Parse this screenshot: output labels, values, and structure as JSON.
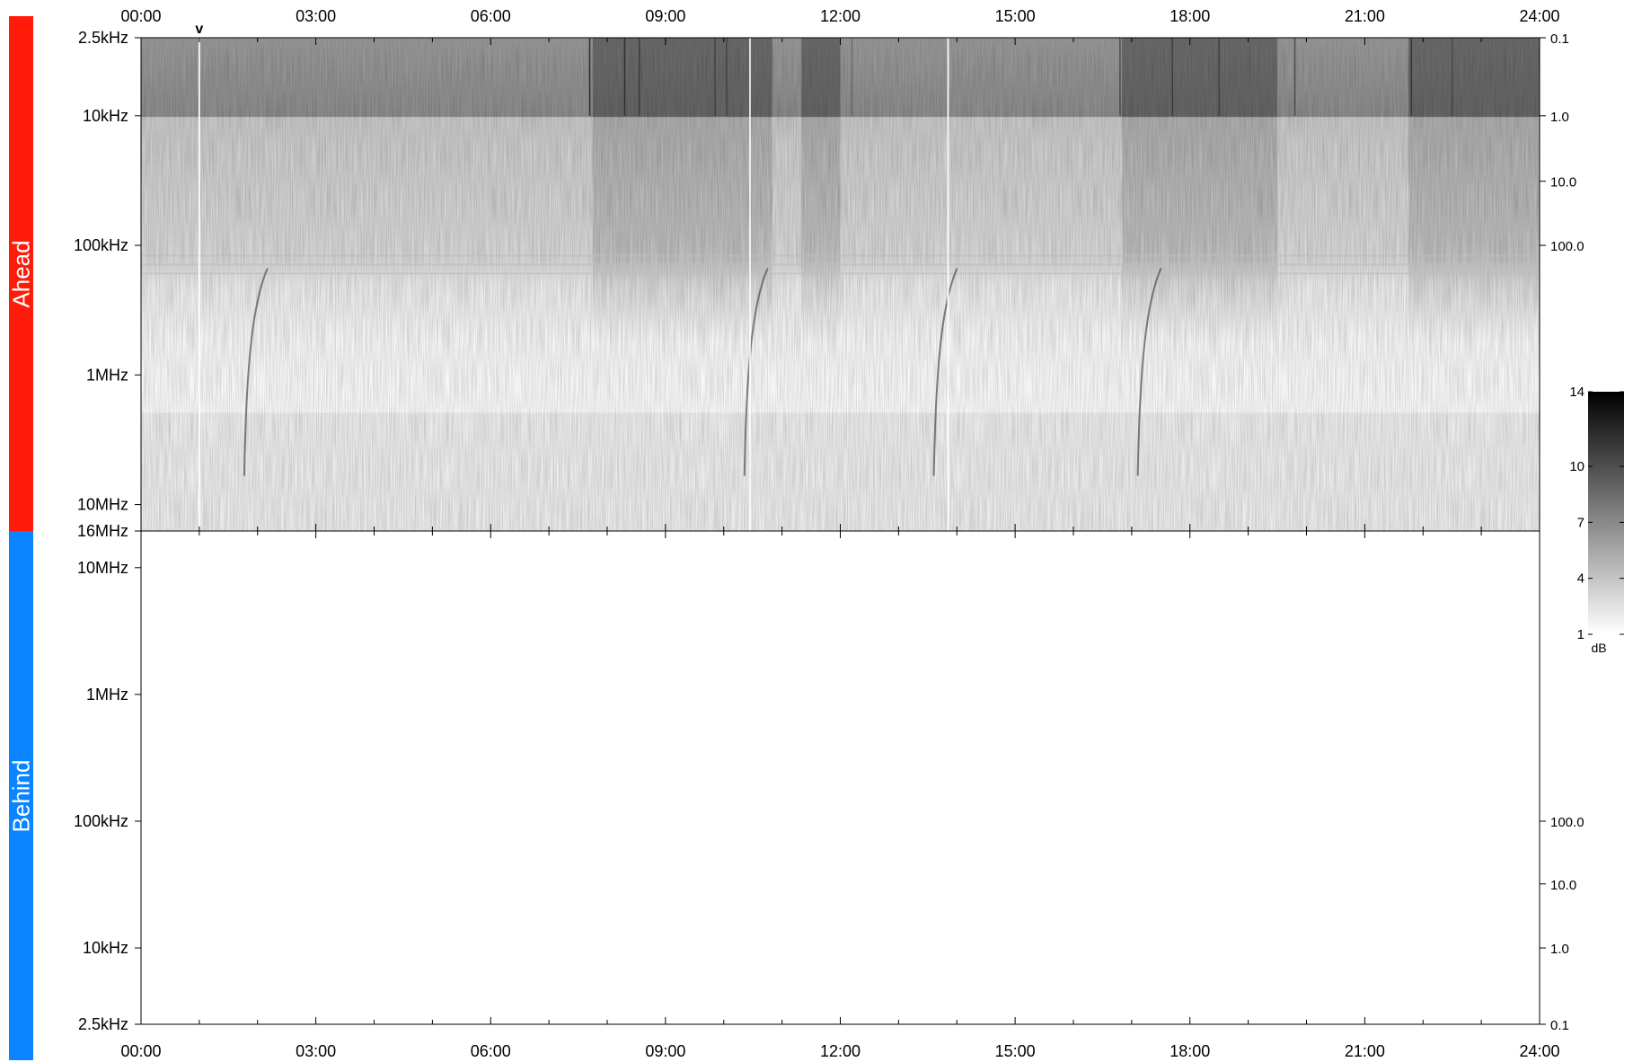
{
  "panels": {
    "ahead": {
      "label": "Ahead",
      "color": "#ff1a0a"
    },
    "behind": {
      "label": "Behind",
      "color": "#0a84ff"
    }
  },
  "colorbar": {
    "unit": "dB",
    "ticks": [
      "14",
      "10",
      "7",
      "4",
      "1"
    ],
    "values": [
      14,
      10,
      7,
      4,
      1
    ],
    "range": [
      1,
      14
    ]
  },
  "chart_data": {
    "type": "heatmap",
    "subtype": "radio spectrogram (frequency vs time, two panels)",
    "x_ticks": [
      "00:00",
      "03:00",
      "06:00",
      "09:00",
      "12:00",
      "15:00",
      "18:00",
      "21:00",
      "24:00"
    ],
    "x_range": [
      "00:00",
      "24:00"
    ],
    "top_panel": {
      "name": "Ahead",
      "y_scale": "log",
      "y_range_hz": [
        2500,
        16000000
      ],
      "y_inverted": true,
      "y_ticks": [
        {
          "label": "2.5kHz",
          "hz": 2500
        },
        {
          "label": "10kHz",
          "hz": 10000
        },
        {
          "label": "100kHz",
          "hz": 100000
        },
        {
          "label": "1MHz",
          "hz": 1000000
        },
        {
          "label": "10MHz",
          "hz": 10000000
        },
        {
          "label": "16MHz",
          "hz": 16000000
        }
      ],
      "right_ticks": [
        {
          "label": "0.1",
          "hz": 2500
        },
        {
          "label": "1.0",
          "hz": 10000
        },
        {
          "label": "10.0",
          "hz": 32000
        },
        {
          "label": "100.0",
          "hz": 100000
        }
      ],
      "marker": {
        "symbol": "v",
        "time": "01:00"
      },
      "type_iii_bursts": [
        {
          "time": "01:50"
        },
        {
          "time": "10:25"
        },
        {
          "time": "13:40"
        },
        {
          "time": "17:10"
        }
      ],
      "enhanced_intervals": [
        {
          "start": "07:45",
          "end": "10:50"
        },
        {
          "start": "11:20",
          "end": "12:00"
        },
        {
          "start": "16:50",
          "end": "19:30"
        },
        {
          "start": "21:45",
          "end": "24:00"
        }
      ]
    },
    "bottom_panel": {
      "name": "Behind",
      "y_scale": "log",
      "y_range_hz": [
        2500,
        16000000
      ],
      "y_ticks": [
        {
          "label": "10MHz",
          "hz": 10000000
        },
        {
          "label": "1MHz",
          "hz": 1000000
        },
        {
          "label": "100kHz",
          "hz": 100000
        },
        {
          "label": "10kHz",
          "hz": 10000
        },
        {
          "label": "2.5kHz",
          "hz": 2500
        }
      ],
      "right_ticks": [
        {
          "label": "100.0",
          "hz": 100000
        },
        {
          "label": "10.0",
          "hz": 32000
        },
        {
          "label": "1.0",
          "hz": 10000
        },
        {
          "label": "0.1",
          "hz": 2500
        }
      ],
      "data": "empty"
    }
  }
}
